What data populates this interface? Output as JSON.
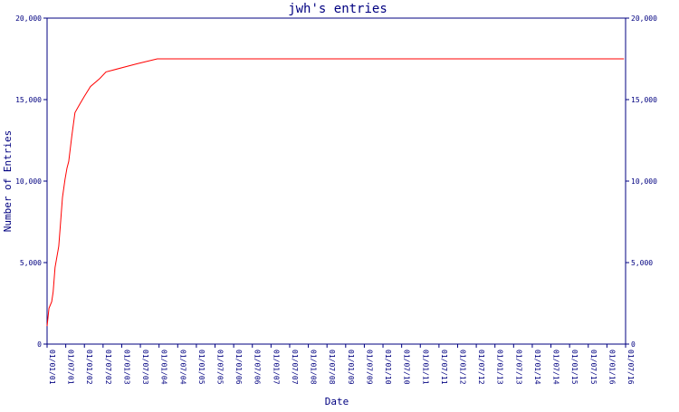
{
  "chart_data": {
    "type": "line",
    "title": "jwh's entries",
    "xlabel": "Date",
    "ylabel": "Number of Entries",
    "ylim": [
      0,
      20000
    ],
    "yticks": [
      0,
      5000,
      10000,
      15000,
      20000
    ],
    "ytick_labels": [
      "0",
      "5,000",
      "10,000",
      "15,000",
      "20,000"
    ],
    "xlim": [
      "2001-01-01",
      "2016-07-01"
    ],
    "xtick_labels": [
      "01/01/01",
      "01/07/01",
      "01/01/02",
      "01/07/02",
      "01/01/03",
      "01/07/03",
      "01/01/04",
      "01/07/04",
      "01/01/05",
      "01/07/05",
      "01/01/06",
      "01/07/06",
      "01/01/07",
      "01/07/07",
      "01/01/08",
      "01/07/08",
      "01/01/09",
      "01/07/09",
      "01/01/10",
      "01/07/10",
      "01/01/11",
      "01/07/11",
      "01/01/12",
      "01/07/12",
      "01/01/13",
      "01/07/13",
      "01/01/14",
      "01/07/14",
      "01/01/15",
      "01/07/15",
      "01/01/16",
      "01/07/16"
    ],
    "grid": false,
    "series": [
      {
        "color": "#ff0000",
        "points": [
          [
            "2001-01-01",
            1100
          ],
          [
            "2001-01-20",
            2200
          ],
          [
            "2001-02-15",
            2600
          ],
          [
            "2001-03-01",
            3200
          ],
          [
            "2001-03-20",
            4700
          ],
          [
            "2001-04-25",
            6000
          ],
          [
            "2001-05-15",
            7600
          ],
          [
            "2001-06-01",
            9000
          ],
          [
            "2001-06-25",
            10100
          ],
          [
            "2001-07-15",
            10800
          ],
          [
            "2001-08-01",
            11200
          ],
          [
            "2001-09-01",
            12800
          ],
          [
            "2001-10-01",
            14200
          ],
          [
            "2001-11-15",
            14700
          ],
          [
            "2002-01-01",
            15200
          ],
          [
            "2002-03-01",
            15800
          ],
          [
            "2002-06-01",
            16300
          ],
          [
            "2002-08-01",
            16700
          ],
          [
            "2003-06-01",
            17200
          ],
          [
            "2003-12-15",
            17500
          ],
          [
            "2016-06-15",
            17500
          ]
        ]
      }
    ]
  }
}
